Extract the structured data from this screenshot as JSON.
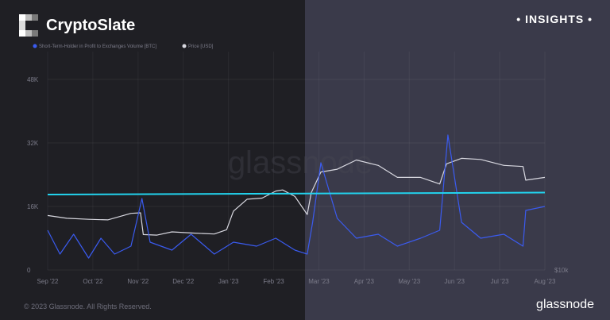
{
  "header": {
    "brand": "CryptoSlate",
    "insights": "• INSIGHTS •"
  },
  "footer": {
    "copyright": "© 2023 Glassnode. All Rights Reserved.",
    "logo": "glassnode"
  },
  "watermark": "glassnode",
  "colors": {
    "price": "#d8d8e0",
    "volume": "#3a5bf0",
    "trendline": "#22d3ee"
  },
  "chart_data": {
    "type": "line",
    "title": "",
    "xlabel": "",
    "ylabel": "",
    "x_ticks": [
      "Sep '22",
      "Oct '22",
      "Nov '22",
      "Dec '22",
      "Jan '23",
      "Feb '23",
      "Mar '23",
      "Apr '23",
      "May '23",
      "Jun '23",
      "Jul '23",
      "Aug '23"
    ],
    "y_ticks": [
      "0",
      "16K",
      "32K",
      "48K"
    ],
    "y_ticks_right": [
      "$10k"
    ],
    "ylim": [
      0,
      48000
    ],
    "legend": [
      {
        "name": "Short-Term-Holder in Profit to Exchanges Volume [BTC]",
        "color": "#3a5bf0"
      },
      {
        "name": "Price [USD]",
        "color": "#d8d8e0"
      }
    ],
    "series": [
      {
        "name": "Price [USD]",
        "axis": "price",
        "ylim": [
          10000,
          45000
        ],
        "x": [
          "2022-09-01",
          "2022-09-15",
          "2022-10-01",
          "2022-10-15",
          "2022-11-01",
          "2022-11-08",
          "2022-11-10",
          "2022-11-20",
          "2022-12-01",
          "2022-12-15",
          "2023-01-01",
          "2023-01-10",
          "2023-01-15",
          "2023-01-25",
          "2023-02-05",
          "2023-02-15",
          "2023-02-20",
          "2023-03-01",
          "2023-03-10",
          "2023-03-13",
          "2023-03-20",
          "2023-04-01",
          "2023-04-15",
          "2023-05-01",
          "2023-05-15",
          "2023-06-01",
          "2023-06-15",
          "2023-06-20",
          "2023-07-01",
          "2023-07-15",
          "2023-08-01",
          "2023-08-15",
          "2023-08-17",
          "2023-08-31"
        ],
        "values": [
          20000,
          19500,
          19300,
          19200,
          20400,
          20500,
          16500,
          16400,
          17000,
          16800,
          16600,
          17400,
          20800,
          23000,
          23200,
          24500,
          24700,
          23500,
          20200,
          24200,
          28000,
          28500,
          30200,
          29200,
          27000,
          27000,
          25800,
          29500,
          30500,
          30300,
          29200,
          29000,
          26500,
          27000
        ]
      },
      {
        "name": "Short-Term-Holder in Profit to Exchanges Volume [BTC]",
        "axis": "volume",
        "ylim": [
          0,
          48000
        ],
        "x": [
          "2022-09-01",
          "2022-09-10",
          "2022-09-20",
          "2022-10-01",
          "2022-10-10",
          "2022-10-20",
          "2022-11-01",
          "2022-11-09",
          "2022-11-15",
          "2022-12-01",
          "2022-12-15",
          "2023-01-01",
          "2023-01-15",
          "2023-02-01",
          "2023-02-15",
          "2023-03-01",
          "2023-03-10",
          "2023-03-14",
          "2023-03-20",
          "2023-04-01",
          "2023-04-15",
          "2023-05-01",
          "2023-05-15",
          "2023-06-01",
          "2023-06-15",
          "2023-06-21",
          "2023-07-01",
          "2023-07-15",
          "2023-08-01",
          "2023-08-15",
          "2023-08-17",
          "2023-08-31"
        ],
        "values": [
          10000,
          4000,
          9000,
          3000,
          8000,
          4000,
          6000,
          18000,
          7000,
          5000,
          9000,
          4000,
          7000,
          6000,
          8000,
          5000,
          4000,
          12000,
          27000,
          13000,
          8000,
          9000,
          6000,
          8000,
          10000,
          34000,
          12000,
          8000,
          9000,
          6000,
          15000,
          16000
        ]
      },
      {
        "name": "",
        "axis": "volume",
        "x": [
          "2022-09-01",
          "2023-08-31"
        ],
        "values": [
          19000,
          19500
        ]
      }
    ]
  }
}
